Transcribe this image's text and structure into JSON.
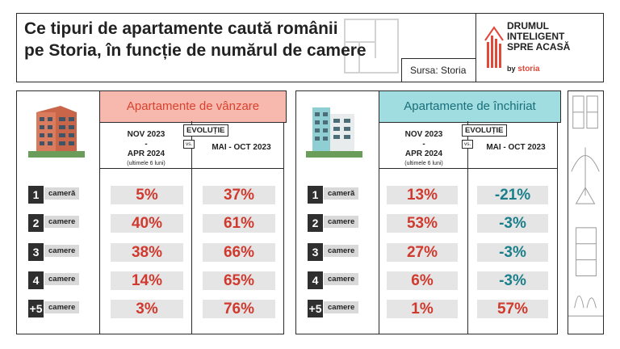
{
  "header": {
    "title_line1": "Ce tipuri de apartamente caută românii",
    "title_line2": "pe Storia, în funcție de numărul de camere",
    "source": "Sursa: Storia",
    "logo_line1": "DRUMUL",
    "logo_line2": "INTELIGENT",
    "logo_line3": "SPRE ACASĂ",
    "logo_by": "by",
    "logo_brand": "storia"
  },
  "colors": {
    "sale_accent": "#d03a2e",
    "sale_bg": "#f7b9ae",
    "rent_accent": "#1a7f8a",
    "rent_bg": "#9fdde0"
  },
  "sale": {
    "title": "Apartamente de vânzare",
    "col1_line1": "NOV 2023",
    "col1_line2": "-",
    "col1_line3": "APR 2024",
    "col1_sub": "(ultimele 6 luni)",
    "evol": "EVOLUȚIE",
    "vs": "vs.",
    "col2": "MAI - OCT 2023",
    "rows": [
      {
        "num": "1",
        "label": "cameră",
        "share": "5%",
        "evolution": "37%"
      },
      {
        "num": "2",
        "label": "camere",
        "share": "40%",
        "evolution": "61%"
      },
      {
        "num": "3",
        "label": "camere",
        "share": "38%",
        "evolution": "66%"
      },
      {
        "num": "4",
        "label": "camere",
        "share": "14%",
        "evolution": "65%"
      },
      {
        "num": "+5",
        "label": "camere",
        "share": "3%",
        "evolution": "76%"
      }
    ]
  },
  "rent": {
    "title": "Apartamente de închiriat",
    "col1_line1": "NOV 2023",
    "col1_line2": "-",
    "col1_line3": "APR 2024",
    "col1_sub": "(ultimele 6 luni)",
    "evol": "EVOLUȚIE",
    "vs": "vs.",
    "col2": "MAI - OCT 2023",
    "rows": [
      {
        "num": "1",
        "label": "cameră",
        "share": "13%",
        "evolution": "-21%"
      },
      {
        "num": "2",
        "label": "camere",
        "share": "53%",
        "evolution": "-3%"
      },
      {
        "num": "3",
        "label": "camere",
        "share": "27%",
        "evolution": "-3%"
      },
      {
        "num": "4",
        "label": "camere",
        "share": "6%",
        "evolution": "-3%"
      },
      {
        "num": "+5",
        "label": "camere",
        "share": "1%",
        "evolution": "57%"
      }
    ]
  }
}
